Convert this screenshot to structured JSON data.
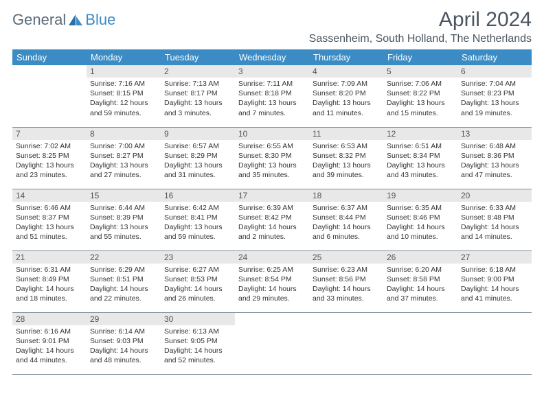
{
  "logo": {
    "part1": "General",
    "part2": "Blue"
  },
  "title": "April 2024",
  "location": "Sassenheim, South Holland, The Netherlands",
  "colors": {
    "header_bg": "#3b8bc4",
    "header_fg": "#ffffff",
    "daynum_bg": "#e8e8e8",
    "border": "#7a8a9a",
    "text": "#333333"
  },
  "weekdays": [
    "Sunday",
    "Monday",
    "Tuesday",
    "Wednesday",
    "Thursday",
    "Friday",
    "Saturday"
  ],
  "weeks": [
    [
      null,
      {
        "n": "1",
        "sr": "7:16 AM",
        "ss": "8:15 PM",
        "dl": "12 hours and 59 minutes."
      },
      {
        "n": "2",
        "sr": "7:13 AM",
        "ss": "8:17 PM",
        "dl": "13 hours and 3 minutes."
      },
      {
        "n": "3",
        "sr": "7:11 AM",
        "ss": "8:18 PM",
        "dl": "13 hours and 7 minutes."
      },
      {
        "n": "4",
        "sr": "7:09 AM",
        "ss": "8:20 PM",
        "dl": "13 hours and 11 minutes."
      },
      {
        "n": "5",
        "sr": "7:06 AM",
        "ss": "8:22 PM",
        "dl": "13 hours and 15 minutes."
      },
      {
        "n": "6",
        "sr": "7:04 AM",
        "ss": "8:23 PM",
        "dl": "13 hours and 19 minutes."
      }
    ],
    [
      {
        "n": "7",
        "sr": "7:02 AM",
        "ss": "8:25 PM",
        "dl": "13 hours and 23 minutes."
      },
      {
        "n": "8",
        "sr": "7:00 AM",
        "ss": "8:27 PM",
        "dl": "13 hours and 27 minutes."
      },
      {
        "n": "9",
        "sr": "6:57 AM",
        "ss": "8:29 PM",
        "dl": "13 hours and 31 minutes."
      },
      {
        "n": "10",
        "sr": "6:55 AM",
        "ss": "8:30 PM",
        "dl": "13 hours and 35 minutes."
      },
      {
        "n": "11",
        "sr": "6:53 AM",
        "ss": "8:32 PM",
        "dl": "13 hours and 39 minutes."
      },
      {
        "n": "12",
        "sr": "6:51 AM",
        "ss": "8:34 PM",
        "dl": "13 hours and 43 minutes."
      },
      {
        "n": "13",
        "sr": "6:48 AM",
        "ss": "8:36 PM",
        "dl": "13 hours and 47 minutes."
      }
    ],
    [
      {
        "n": "14",
        "sr": "6:46 AM",
        "ss": "8:37 PM",
        "dl": "13 hours and 51 minutes."
      },
      {
        "n": "15",
        "sr": "6:44 AM",
        "ss": "8:39 PM",
        "dl": "13 hours and 55 minutes."
      },
      {
        "n": "16",
        "sr": "6:42 AM",
        "ss": "8:41 PM",
        "dl": "13 hours and 59 minutes."
      },
      {
        "n": "17",
        "sr": "6:39 AM",
        "ss": "8:42 PM",
        "dl": "14 hours and 2 minutes."
      },
      {
        "n": "18",
        "sr": "6:37 AM",
        "ss": "8:44 PM",
        "dl": "14 hours and 6 minutes."
      },
      {
        "n": "19",
        "sr": "6:35 AM",
        "ss": "8:46 PM",
        "dl": "14 hours and 10 minutes."
      },
      {
        "n": "20",
        "sr": "6:33 AM",
        "ss": "8:48 PM",
        "dl": "14 hours and 14 minutes."
      }
    ],
    [
      {
        "n": "21",
        "sr": "6:31 AM",
        "ss": "8:49 PM",
        "dl": "14 hours and 18 minutes."
      },
      {
        "n": "22",
        "sr": "6:29 AM",
        "ss": "8:51 PM",
        "dl": "14 hours and 22 minutes."
      },
      {
        "n": "23",
        "sr": "6:27 AM",
        "ss": "8:53 PM",
        "dl": "14 hours and 26 minutes."
      },
      {
        "n": "24",
        "sr": "6:25 AM",
        "ss": "8:54 PM",
        "dl": "14 hours and 29 minutes."
      },
      {
        "n": "25",
        "sr": "6:23 AM",
        "ss": "8:56 PM",
        "dl": "14 hours and 33 minutes."
      },
      {
        "n": "26",
        "sr": "6:20 AM",
        "ss": "8:58 PM",
        "dl": "14 hours and 37 minutes."
      },
      {
        "n": "27",
        "sr": "6:18 AM",
        "ss": "9:00 PM",
        "dl": "14 hours and 41 minutes."
      }
    ],
    [
      {
        "n": "28",
        "sr": "6:16 AM",
        "ss": "9:01 PM",
        "dl": "14 hours and 44 minutes."
      },
      {
        "n": "29",
        "sr": "6:14 AM",
        "ss": "9:03 PM",
        "dl": "14 hours and 48 minutes."
      },
      {
        "n": "30",
        "sr": "6:13 AM",
        "ss": "9:05 PM",
        "dl": "14 hours and 52 minutes."
      },
      null,
      null,
      null,
      null
    ]
  ],
  "labels": {
    "sunrise": "Sunrise:",
    "sunset": "Sunset:",
    "daylight": "Daylight:"
  }
}
